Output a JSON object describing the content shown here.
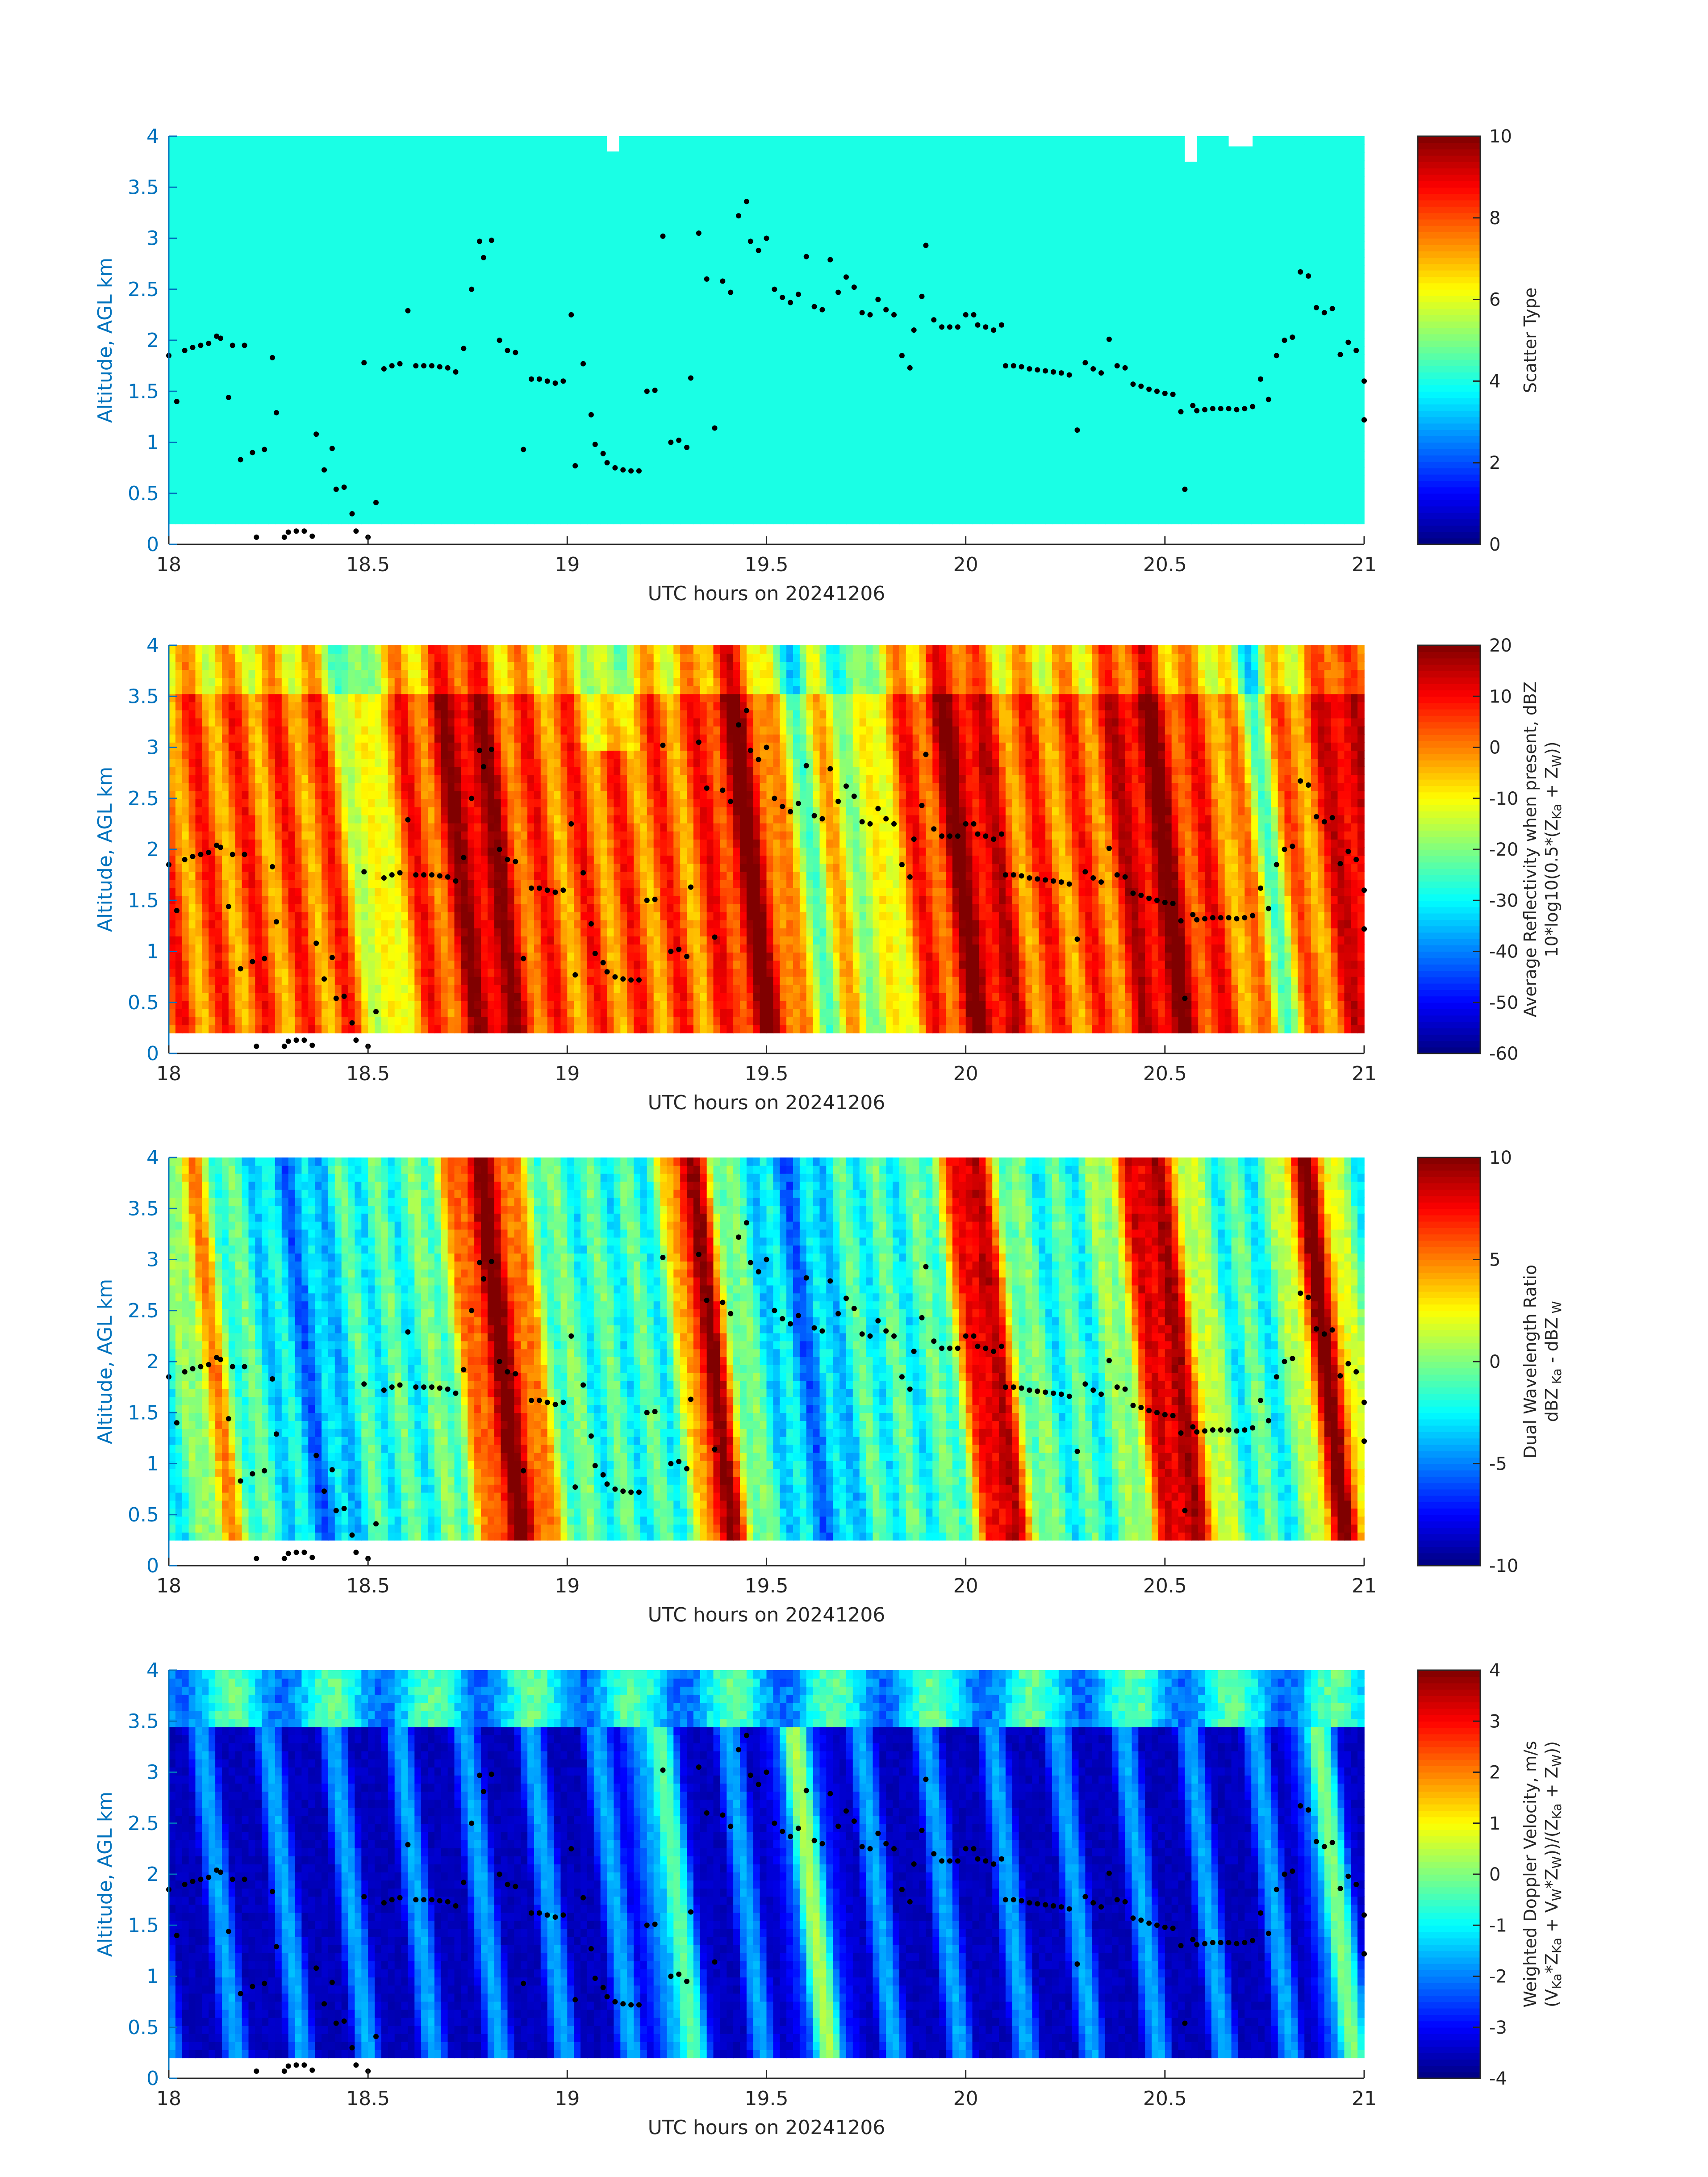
{
  "chart_data": [
    {
      "type": "heatmap",
      "id": "scatter-type",
      "xlabel": "UTC hours on 20241206",
      "ylabel": "Altitude, AGL km",
      "xlim": [
        18,
        21
      ],
      "ylim": [
        0,
        4
      ],
      "xticks": [
        "18",
        "18.5",
        "19",
        "19.5",
        "20",
        "20.5",
        "21"
      ],
      "yticks": [
        "0",
        "0.5",
        "1",
        "1.5",
        "2",
        "2.5",
        "3",
        "3.5",
        "4"
      ],
      "colorbar": {
        "label_lines": [
          "Scatter Type"
        ],
        "range": [
          0,
          10
        ],
        "ticks": [
          "0",
          "2",
          "4",
          "6",
          "8",
          "10"
        ]
      },
      "field": "scatter_type",
      "data_floor_km": 0.2,
      "uniform_value": 4,
      "gaps": [
        [
          19.1,
          19.13,
          3.85
        ],
        [
          20.55,
          20.58,
          3.75
        ],
        [
          20.66,
          20.72,
          3.9
        ]
      ]
    },
    {
      "type": "heatmap",
      "id": "avg-reflectivity",
      "xlabel": "UTC hours on 20241206",
      "ylabel": "Altitude, AGL km",
      "xlim": [
        18,
        21
      ],
      "ylim": [
        0,
        4
      ],
      "xticks": [
        "18",
        "18.5",
        "19",
        "19.5",
        "20",
        "20.5",
        "21"
      ],
      "yticks": [
        "0",
        "0.5",
        "1",
        "1.5",
        "2",
        "2.5",
        "3",
        "3.5",
        "4"
      ],
      "colorbar": {
        "label_lines": [
          "Average Reflectivity when present, dBZ",
          "10*log10(0.5*(Z",
          "Ka",
          " + Z",
          "W",
          "))"
        ],
        "range": [
          -60,
          20
        ],
        "ticks": [
          "-60",
          "-50",
          "-40",
          "-30",
          "-20",
          "-10",
          "0",
          "10",
          "20"
        ]
      },
      "field": "reflectivity",
      "data_floor_km": 0.2
    },
    {
      "type": "heatmap",
      "id": "dual-wavelength-ratio",
      "xlabel": "UTC hours on 20241206",
      "ylabel": "Altitude, AGL km",
      "xlim": [
        18,
        21
      ],
      "ylim": [
        0,
        4
      ],
      "xticks": [
        "18",
        "18.5",
        "19",
        "19.5",
        "20",
        "20.5",
        "21"
      ],
      "yticks": [
        "0",
        "0.5",
        "1",
        "1.5",
        "2",
        "2.5",
        "3",
        "3.5",
        "4"
      ],
      "colorbar": {
        "label_lines": [
          "Dual Wavelength Ratio",
          "dBZ",
          " Ka",
          " - dBZ",
          " W"
        ],
        "range": [
          -10,
          10
        ],
        "ticks": [
          "-10",
          "-5",
          "0",
          "5",
          "10"
        ]
      },
      "field": "dwr",
      "data_floor_km": 0.25
    },
    {
      "type": "heatmap",
      "id": "weighted-doppler-velocity",
      "xlabel": "UTC hours on 20241206",
      "ylabel": "Altitude, AGL km",
      "xlim": [
        18,
        21
      ],
      "ylim": [
        0,
        4
      ],
      "xticks": [
        "18",
        "18.5",
        "19",
        "19.5",
        "20",
        "20.5",
        "21"
      ],
      "yticks": [
        "0",
        "0.5",
        "1",
        "1.5",
        "2",
        "2.5",
        "3",
        "3.5",
        "4"
      ],
      "colorbar": {
        "label_lines": [
          "Weighted Doppler Velocity, m/s",
          "(V",
          "Ka",
          "*Z",
          "Ka",
          " + V",
          "W",
          "*Z",
          "W",
          "))/(Z",
          "Ka",
          " + Z",
          "W",
          "))"
        ],
        "range": [
          -4,
          4
        ],
        "ticks": [
          "-4",
          "-3",
          "-2",
          "-1",
          "0",
          "1",
          "2",
          "3",
          "4"
        ]
      },
      "field": "doppler",
      "data_floor_km": 0.2
    }
  ],
  "cloud_base_points": [
    [
      18.0,
      1.85
    ],
    [
      18.02,
      1.4
    ],
    [
      18.04,
      1.9
    ],
    [
      18.06,
      1.93
    ],
    [
      18.08,
      1.95
    ],
    [
      18.1,
      1.97
    ],
    [
      18.12,
      2.04
    ],
    [
      18.13,
      2.02
    ],
    [
      18.15,
      1.44
    ],
    [
      18.16,
      1.95
    ],
    [
      18.18,
      0.83
    ],
    [
      18.19,
      1.95
    ],
    [
      18.21,
      0.9
    ],
    [
      18.22,
      0.07
    ],
    [
      18.24,
      0.93
    ],
    [
      18.26,
      1.83
    ],
    [
      18.27,
      1.29
    ],
    [
      18.29,
      0.07
    ],
    [
      18.3,
      0.12
    ],
    [
      18.32,
      0.13
    ],
    [
      18.34,
      0.13
    ],
    [
      18.36,
      0.08
    ],
    [
      18.37,
      1.08
    ],
    [
      18.39,
      0.73
    ],
    [
      18.41,
      0.94
    ],
    [
      18.42,
      0.54
    ],
    [
      18.44,
      0.56
    ],
    [
      18.46,
      0.3
    ],
    [
      18.47,
      0.13
    ],
    [
      18.49,
      1.78
    ],
    [
      18.5,
      0.07
    ],
    [
      18.52,
      0.41
    ],
    [
      18.54,
      1.72
    ],
    [
      18.56,
      1.75
    ],
    [
      18.58,
      1.77
    ],
    [
      18.6,
      2.29
    ],
    [
      18.62,
      1.75
    ],
    [
      18.64,
      1.75
    ],
    [
      18.66,
      1.75
    ],
    [
      18.68,
      1.74
    ],
    [
      18.7,
      1.73
    ],
    [
      18.72,
      1.69
    ],
    [
      18.74,
      1.92
    ],
    [
      18.76,
      2.5
    ],
    [
      18.78,
      2.97
    ],
    [
      18.79,
      2.81
    ],
    [
      18.81,
      2.98
    ],
    [
      18.83,
      2.0
    ],
    [
      18.85,
      1.9
    ],
    [
      18.87,
      1.88
    ],
    [
      18.89,
      0.93
    ],
    [
      18.91,
      1.62
    ],
    [
      18.93,
      1.62
    ],
    [
      18.95,
      1.6
    ],
    [
      18.97,
      1.58
    ],
    [
      18.99,
      1.6
    ],
    [
      19.01,
      2.25
    ],
    [
      19.02,
      0.77
    ],
    [
      19.04,
      1.77
    ],
    [
      19.06,
      1.27
    ],
    [
      19.07,
      0.98
    ],
    [
      19.09,
      0.89
    ],
    [
      19.1,
      0.8
    ],
    [
      19.12,
      0.75
    ],
    [
      19.14,
      0.73
    ],
    [
      19.16,
      0.72
    ],
    [
      19.18,
      0.72
    ],
    [
      19.2,
      1.5
    ],
    [
      19.22,
      1.51
    ],
    [
      19.24,
      3.02
    ],
    [
      19.26,
      1.0
    ],
    [
      19.28,
      1.02
    ],
    [
      19.3,
      0.95
    ],
    [
      19.31,
      1.63
    ],
    [
      19.33,
      3.05
    ],
    [
      19.35,
      2.6
    ],
    [
      19.37,
      1.14
    ],
    [
      19.39,
      2.58
    ],
    [
      19.41,
      2.47
    ],
    [
      19.43,
      3.22
    ],
    [
      19.45,
      3.36
    ],
    [
      19.46,
      2.97
    ],
    [
      19.48,
      2.88
    ],
    [
      19.5,
      3.0
    ],
    [
      19.52,
      2.5
    ],
    [
      19.54,
      2.42
    ],
    [
      19.56,
      2.37
    ],
    [
      19.58,
      2.45
    ],
    [
      19.6,
      2.82
    ],
    [
      19.62,
      2.33
    ],
    [
      19.64,
      2.3
    ],
    [
      19.66,
      2.79
    ],
    [
      19.68,
      2.47
    ],
    [
      19.7,
      2.62
    ],
    [
      19.72,
      2.52
    ],
    [
      19.74,
      2.27
    ],
    [
      19.76,
      2.25
    ],
    [
      19.78,
      2.4
    ],
    [
      19.8,
      2.3
    ],
    [
      19.82,
      2.25
    ],
    [
      19.84,
      1.85
    ],
    [
      19.86,
      1.73
    ],
    [
      19.87,
      2.1
    ],
    [
      19.89,
      2.43
    ],
    [
      19.9,
      2.93
    ],
    [
      19.92,
      2.2
    ],
    [
      19.94,
      2.13
    ],
    [
      19.96,
      2.13
    ],
    [
      19.98,
      2.13
    ],
    [
      20.0,
      2.25
    ],
    [
      20.02,
      2.25
    ],
    [
      20.03,
      2.15
    ],
    [
      20.05,
      2.13
    ],
    [
      20.07,
      2.1
    ],
    [
      20.09,
      2.15
    ],
    [
      20.1,
      1.75
    ],
    [
      20.12,
      1.75
    ],
    [
      20.14,
      1.74
    ],
    [
      20.16,
      1.72
    ],
    [
      20.18,
      1.71
    ],
    [
      20.2,
      1.7
    ],
    [
      20.22,
      1.69
    ],
    [
      20.24,
      1.68
    ],
    [
      20.26,
      1.66
    ],
    [
      20.28,
      1.12
    ],
    [
      20.3,
      1.78
    ],
    [
      20.32,
      1.72
    ],
    [
      20.34,
      1.68
    ],
    [
      20.36,
      2.01
    ],
    [
      20.38,
      1.75
    ],
    [
      20.4,
      1.73
    ],
    [
      20.42,
      1.57
    ],
    [
      20.44,
      1.55
    ],
    [
      20.46,
      1.52
    ],
    [
      20.48,
      1.5
    ],
    [
      20.5,
      1.48
    ],
    [
      20.52,
      1.47
    ],
    [
      20.54,
      1.3
    ],
    [
      20.55,
      0.54
    ],
    [
      20.57,
      1.36
    ],
    [
      20.58,
      1.31
    ],
    [
      20.6,
      1.32
    ],
    [
      20.62,
      1.33
    ],
    [
      20.64,
      1.33
    ],
    [
      20.66,
      1.33
    ],
    [
      20.68,
      1.32
    ],
    [
      20.7,
      1.33
    ],
    [
      20.72,
      1.35
    ],
    [
      20.74,
      1.62
    ],
    [
      20.76,
      1.42
    ],
    [
      20.78,
      1.85
    ],
    [
      20.8,
      2.0
    ],
    [
      20.82,
      2.03
    ],
    [
      20.84,
      2.67
    ],
    [
      20.86,
      2.63
    ],
    [
      20.88,
      2.32
    ],
    [
      20.9,
      2.27
    ],
    [
      20.92,
      2.31
    ],
    [
      20.94,
      1.86
    ],
    [
      20.96,
      1.98
    ],
    [
      20.98,
      1.9
    ],
    [
      21.0,
      1.6
    ],
    [
      21.02,
      1.22
    ],
    [
      21.04,
      1.22
    ]
  ]
}
